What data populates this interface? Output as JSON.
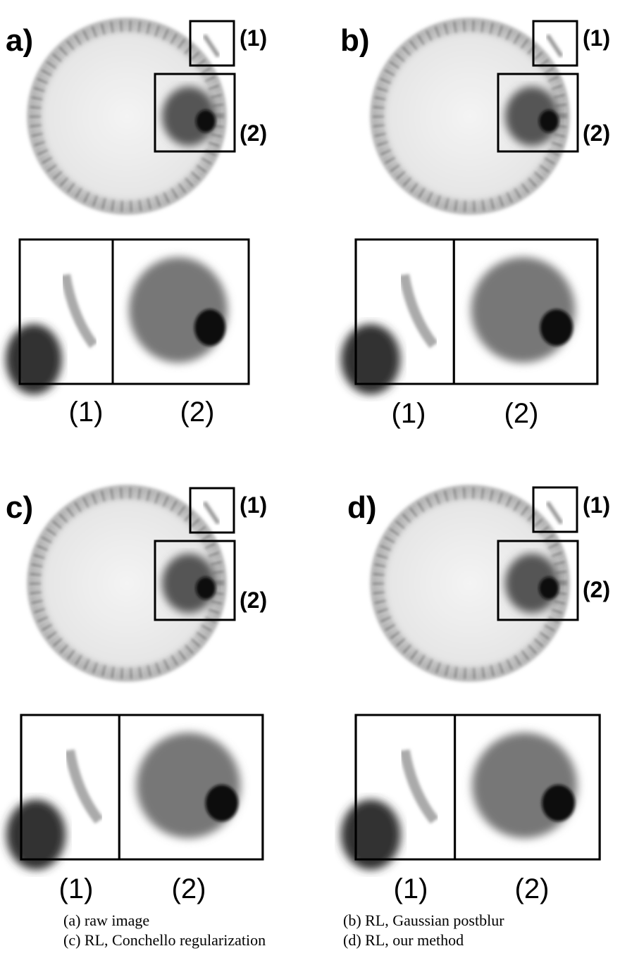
{
  "panels": [
    {
      "label": "a)",
      "box_labels": [
        "(1)",
        "(2)"
      ],
      "zoom_labels": [
        "(1)",
        "(2)"
      ],
      "caption": "(a) raw image"
    },
    {
      "label": "b)",
      "box_labels": [
        "(1)",
        "(2)"
      ],
      "zoom_labels": [
        "(1)",
        "(2)"
      ],
      "caption": "(b) RL, Gaussian postblur"
    },
    {
      "label": "c)",
      "box_labels": [
        "(1)",
        "(2)"
      ],
      "zoom_labels": [
        "(1)",
        "(2)"
      ],
      "caption": "(c) RL, Conchello regularization"
    },
    {
      "label": "d)",
      "box_labels": [
        "(1)",
        "(2)"
      ],
      "zoom_labels": [
        "(1)",
        "(2)"
      ],
      "caption": "(d) RL, our method"
    }
  ]
}
